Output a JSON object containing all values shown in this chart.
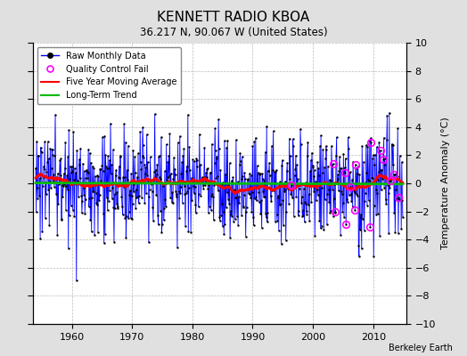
{
  "title": "KENNETT RADIO KBOA",
  "subtitle": "36.217 N, 90.067 W (United States)",
  "ylabel": "Temperature Anomaly (°C)",
  "credit": "Berkeley Earth",
  "xlim": [
    1953.5,
    2015.5
  ],
  "ylim": [
    -10,
    10
  ],
  "xticks": [
    1960,
    1970,
    1980,
    1990,
    2000,
    2010
  ],
  "yticks": [
    -10,
    -8,
    -6,
    -4,
    -2,
    0,
    2,
    4,
    6,
    8,
    10
  ],
  "start_year": 1954,
  "end_year": 2014,
  "raw_color": "#0000FF",
  "ma_color": "#FF0000",
  "trend_color": "#00BB00",
  "qc_color": "#FF00FF",
  "background_color": "#E0E0E0",
  "plot_bg_color": "#FFFFFF",
  "legend_loc": "upper left",
  "title_fontsize": 11,
  "subtitle_fontsize": 8.5,
  "tick_fontsize": 8,
  "legend_fontsize": 7
}
